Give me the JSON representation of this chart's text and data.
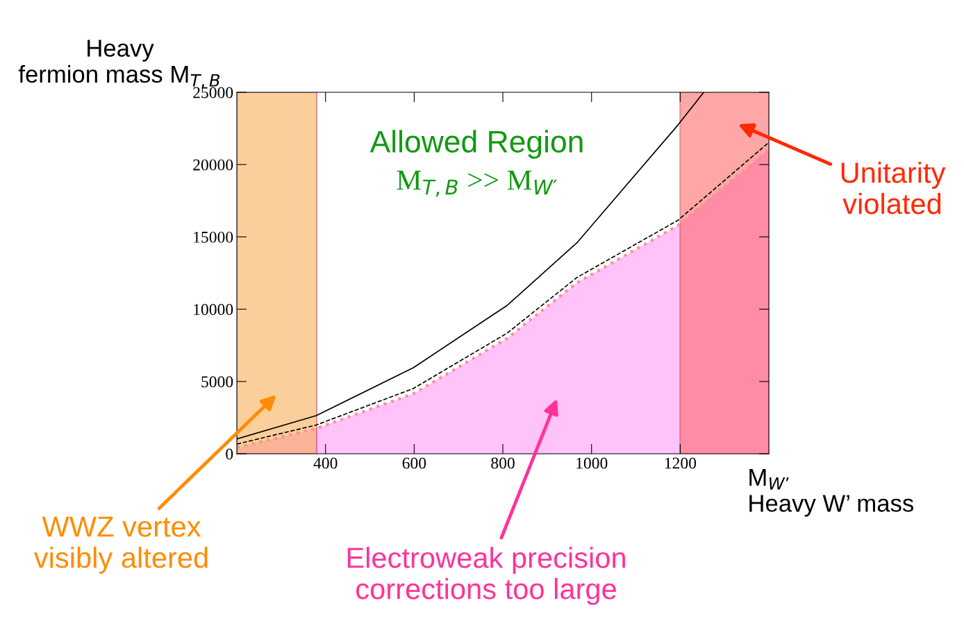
{
  "chart_data": {
    "type": "line",
    "xlabel": "M$_{W’}$\nHeavy W’ mass",
    "ylabel": "Heavy\nfermion mass M$_{T,B}$",
    "series": [
      {
        "type": "area",
        "color": "#ffb3f7",
        "line_style": "dotted",
        "x": [
          200,
          379,
          598,
          810,
          967,
          1195,
          1400
        ],
        "values": [
          430,
          1750,
          4150,
          7990,
          11830,
          15790,
          21060
        ]
      },
      {
        "color": "#000000",
        "line_style": "dashed",
        "x": [
          200,
          379,
          598,
          810,
          967,
          1195,
          1400
        ],
        "values": [
          670,
          1990,
          4510,
          8350,
          12190,
          16150,
          21540
        ]
      },
      {
        "color": "#000000",
        "line_style": "solid",
        "x": [
          200,
          379,
          598,
          810,
          967,
          1195,
          1253
        ],
        "values": [
          1030,
          2640,
          5950,
          10270,
          14590,
          22740,
          25000
        ]
      }
    ],
    "bands": [
      {
        "axis": "x",
        "from": 200,
        "to": 380,
        "color": "#f9a94a"
      },
      {
        "axis": "x",
        "from": 1200,
        "to": 1400,
        "color": "#ff6060"
      }
    ],
    "annotations": [
      "WWZ vertex\nvisibly altered",
      "Electroweak precision\ncorrections too large",
      "Unitarity\nviolated",
      "Allowed Region",
      "M$_{T,B}$ >> M$_{W′}$"
    ],
    "xlim": [
      200,
      1400
    ],
    "ylim": [
      0,
      25000
    ],
    "xticks": [
      400,
      600,
      800,
      1000,
      1200
    ],
    "yticks": [
      0,
      5000,
      10000,
      15000,
      20000,
      25000
    ],
    "grid": false,
    "legend": false
  }
}
